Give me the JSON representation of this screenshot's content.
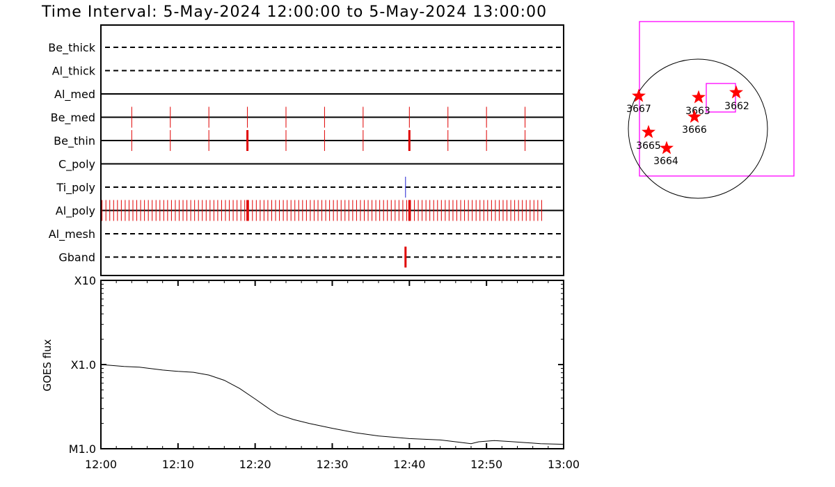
{
  "chart_data": {
    "type": "line",
    "title": "Time Interval:  5-May-2024 12:00:00 to  5-May-2024 13:00:00",
    "timeline": {
      "rows": [
        {
          "name": "Be_thick",
          "line": "dashed"
        },
        {
          "name": "Al_thick",
          "line": "dashed"
        },
        {
          "name": "Al_med",
          "line": "solid"
        },
        {
          "name": "Be_med",
          "line": "solid"
        },
        {
          "name": "Be_thin",
          "line": "solid"
        },
        {
          "name": "C_poly",
          "line": "solid"
        },
        {
          "name": "Ti_poly",
          "line": "dashed"
        },
        {
          "name": "Al_poly",
          "line": "solid"
        },
        {
          "name": "Al_mesh",
          "line": "dashed"
        },
        {
          "name": "Gband",
          "line": "dashed"
        }
      ],
      "exposures": {
        "Be_med": {
          "color": "#e00000",
          "times_min": [
            4,
            9,
            14,
            19,
            24,
            29,
            34,
            40,
            45,
            50,
            55
          ]
        },
        "Be_thin": {
          "color": "#e00000",
          "times_min": [
            4,
            9,
            14,
            19,
            24,
            29,
            34,
            40,
            45,
            50,
            55
          ],
          "thick_at": [
            19,
            40
          ]
        },
        "Ti_poly": {
          "color": "#1f1fd0",
          "times_min": [
            39.5
          ]
        },
        "Al_poly": {
          "color": "#e00000",
          "start_min": 0.15,
          "step_min": 0.5,
          "end_min": 57.4,
          "thick_at": [
            19,
            40
          ]
        },
        "Gband": {
          "color": "#e00000",
          "times_min": [
            39.5
          ],
          "thick_at": [
            39.5
          ]
        }
      }
    },
    "goes": {
      "ylabel": "GOES flux",
      "yscale": "log",
      "ylim": [
        1e-05,
        0.001
      ],
      "ytick_labels": [
        "X10",
        "X1.0",
        "M1.0"
      ],
      "xlim_min": [
        0,
        60
      ],
      "xtick_labels": [
        "12:00",
        "12:10",
        "12:20",
        "12:30",
        "12:40",
        "12:50",
        "13:00"
      ],
      "series": [
        {
          "color": "#000000",
          "x_min": [
            0,
            3,
            5,
            8,
            10,
            12,
            14,
            16,
            18,
            20,
            22,
            23,
            25,
            27,
            30,
            33,
            36,
            40,
            44,
            46,
            48,
            49,
            51,
            53,
            57,
            60
          ],
          "y": [
            0.0001,
            9.5e-05,
            9.3e-05,
            8.6e-05,
            8.3e-05,
            8.1e-05,
            7.5e-05,
            6.5e-05,
            5.2e-05,
            3.9e-05,
            2.9e-05,
            2.55e-05,
            2.22e-05,
            2e-05,
            1.75e-05,
            1.55e-05,
            1.42e-05,
            1.32e-05,
            1.27e-05,
            1.21e-05,
            1.15e-05,
            1.21e-05,
            1.25e-05,
            1.22e-05,
            1.15e-05,
            1.13e-05
          ]
        }
      ]
    },
    "context": {
      "regions": [
        {
          "label": "3667",
          "color": "#ff0000"
        },
        {
          "label": "3664",
          "color": "#ff0000"
        },
        {
          "label": "3663",
          "color": "#ff0000"
        },
        {
          "label": "3662",
          "color": "#ff0000"
        },
        {
          "label": "3666",
          "color": "#ff0000"
        },
        {
          "label": "3665",
          "color": "#ff0000"
        }
      ],
      "frame_color": "#ff00ff"
    }
  }
}
